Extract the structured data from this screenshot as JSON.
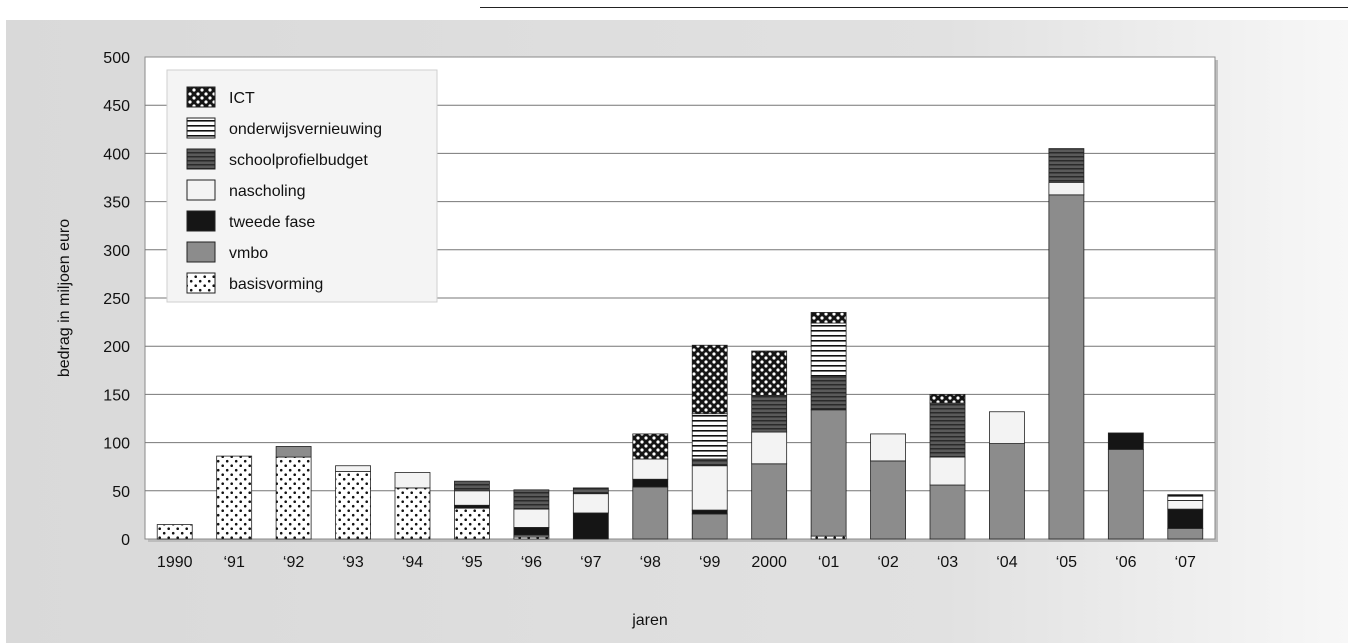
{
  "chart_data": {
    "type": "bar",
    "stacked": true,
    "title": "",
    "xlabel": "jaren",
    "ylabel": "bedrag in miljoen euro",
    "ylim": [
      0,
      500
    ],
    "yticks": [
      0,
      50,
      100,
      150,
      200,
      250,
      300,
      350,
      400,
      450,
      500
    ],
    "grid": true,
    "legend_position": "top-left",
    "categories": [
      "1990",
      "‘91",
      "‘92",
      "‘93",
      "‘94",
      "‘95",
      "‘96",
      "‘97",
      "‘98",
      "‘99",
      "2000",
      "‘01",
      "‘02",
      "‘03",
      "‘04",
      "‘05",
      "‘06",
      "‘07"
    ],
    "series": [
      {
        "name": "basisvorming",
        "pattern": "dots-light",
        "values": [
          15,
          86,
          85,
          70,
          53,
          32,
          2,
          0,
          0,
          0,
          0,
          3,
          0,
          0,
          0,
          0,
          0,
          0
        ]
      },
      {
        "name": "vmbo",
        "pattern": "solid-gray",
        "values": [
          0,
          0,
          11,
          0,
          0,
          0,
          2,
          0,
          54,
          26,
          78,
          131,
          81,
          56,
          99,
          357,
          93,
          11
        ]
      },
      {
        "name": "tweede fase",
        "pattern": "solid-black",
        "values": [
          0,
          0,
          0,
          0,
          0,
          3,
          8,
          27,
          8,
          4,
          0,
          0,
          0,
          0,
          0,
          0,
          17,
          20
        ]
      },
      {
        "name": "nascholing",
        "pattern": "solid-light",
        "values": [
          0,
          0,
          0,
          6,
          16,
          15,
          19,
          20,
          21,
          46,
          33,
          0,
          28,
          29,
          33,
          13,
          0,
          9
        ]
      },
      {
        "name": "schoolprofielbudget",
        "pattern": "hlines-dark",
        "values": [
          0,
          0,
          0,
          0,
          0,
          10,
          20,
          6,
          0,
          7,
          38,
          34,
          0,
          56,
          0,
          35,
          0,
          0
        ]
      },
      {
        "name": "onderwijsvernieuwing",
        "pattern": "hlines-light",
        "values": [
          0,
          0,
          0,
          0,
          0,
          0,
          0,
          0,
          0,
          47,
          0,
          56,
          0,
          0,
          0,
          0,
          0,
          6
        ]
      },
      {
        "name": "ICT",
        "pattern": "dots-dark",
        "values": [
          0,
          0,
          0,
          0,
          0,
          0,
          0,
          0,
          26,
          71,
          46,
          11,
          0,
          9,
          0,
          0,
          0,
          0
        ]
      }
    ],
    "legend_order": [
      "ICT",
      "onderwijsvernieuwing",
      "schoolprofielbudget",
      "nascholing",
      "tweede fase",
      "vmbo",
      "basisvorming"
    ]
  }
}
